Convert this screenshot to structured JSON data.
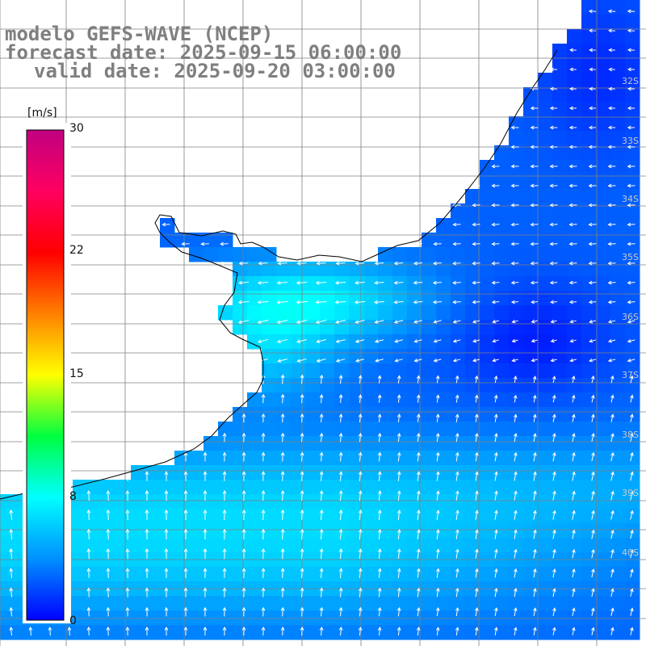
{
  "header": {
    "model_line": "modelo GEFS-WAVE (NCEP)",
    "forecast_line": "forecast date: 2025-09-15 06:00:00",
    "valid_line": "valid date: 2025-09-20 03:00:00"
  },
  "colorbar": {
    "unit": "[m/s]",
    "ticks": [
      "30",
      "22",
      "15",
      "8",
      "0"
    ],
    "tick_values": [
      30,
      22,
      15,
      8,
      0
    ],
    "range": [
      0,
      30
    ],
    "colors": [
      "#0000ff",
      "#0090ff",
      "#00ffff",
      "#00ff40",
      "#ffff00",
      "#ff8000",
      "#ff0000",
      "#ff0060",
      "#c00080"
    ]
  },
  "map": {
    "lat_labels": [
      "32S",
      "33S",
      "34S",
      "35S",
      "36S",
      "37S",
      "38S",
      "39S",
      "40S"
    ],
    "land_color": "#ffffff",
    "grid_color": "#808080",
    "coast_color": "#000000",
    "arrow_color": "#ffffff",
    "field": "surface wind speed"
  }
}
